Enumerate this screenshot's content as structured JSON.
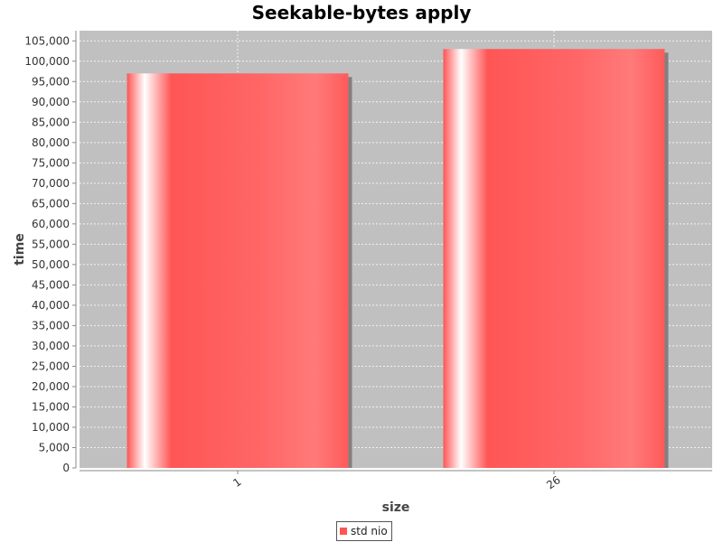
{
  "chart_data": {
    "type": "bar",
    "title": "Seekable-bytes apply",
    "xlabel": "size",
    "ylabel": "time",
    "categories": [
      "1",
      "26"
    ],
    "series": [
      {
        "name": "std nio",
        "values": [
          97000,
          103000
        ]
      }
    ],
    "ylim": [
      0,
      107500
    ],
    "yticks": [
      0,
      5000,
      10000,
      15000,
      20000,
      25000,
      30000,
      35000,
      40000,
      45000,
      50000,
      55000,
      60000,
      65000,
      70000,
      75000,
      80000,
      85000,
      90000,
      95000,
      100000,
      105000
    ],
    "grid": true,
    "legend_position": "bottom-center",
    "colors": {
      "bar": "#ff5555",
      "plot_background": "#c0c0c0",
      "gridline": "#ffffff",
      "shadow": "#808080"
    }
  }
}
